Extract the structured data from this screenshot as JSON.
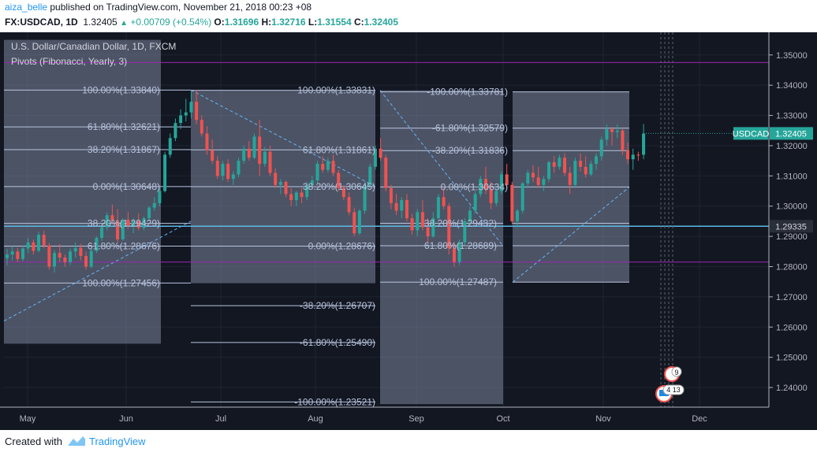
{
  "header": {
    "user": "aiza_belle",
    "published_text": " published on TradingView.com, November 21, 2018 00:23 +08",
    "symbol": "FX:USDCAD, 1D",
    "last": "1.32405",
    "change": "+0.00709 (+0.54%)",
    "o_label": "O:",
    "o": "1.31696",
    "h_label": "H:",
    "h": "1.32716",
    "l_label": "L:",
    "l": "1.31554",
    "c_label": "C:",
    "c": "1.32405"
  },
  "footer": {
    "prefix": "Created with",
    "brand": "TradingView"
  },
  "colors": {
    "background": "#131722",
    "up": "#26a69a",
    "down": "#ef5350",
    "fib_box": "#9aa7c4",
    "fib_line": "#b8c4de",
    "pivot": "#9c27b0",
    "axis_text": "#b2b5be",
    "price_tag": "#26a69a",
    "cursor_tag": "#2a2e39"
  },
  "chart_data": {
    "type": "candlestick",
    "title": "U.S. Dollar/Canadian Dollar, 1D, FXCM",
    "indicator": "Pivots (Fibonacci, Yearly, 3)",
    "x_labels": [
      "May",
      "Jun",
      "Jul",
      "Aug",
      "Sep",
      "Oct",
      "Nov",
      "Dec"
    ],
    "ylim": [
      1.2335,
      1.3575
    ],
    "y_ticks": [
      "1.35000",
      "1.34000",
      "1.33000",
      "1.32000",
      "1.31000",
      "1.30000",
      "1.29000",
      "1.28000",
      "1.27000",
      "1.26000",
      "1.25000",
      "1.24000"
    ],
    "price_tag": {
      "symbol": "USDCAD",
      "value": "1.32405"
    },
    "cursor_tag": "1.29335",
    "pivot_levels": [
      1.3475,
      1.2815
    ],
    "horizontal_line": 1.29335,
    "fib_groups": [
      {
        "labels": [
          {
            "text": "100.00%(1.33840)",
            "value": 1.3384
          },
          {
            "text": "61.80%(1.32621)",
            "value": 1.32621
          },
          {
            "text": "38.20%(1.31867)",
            "value": 1.31867
          },
          {
            "text": "0.00%(1.30648)",
            "value": 1.30648
          },
          {
            "text": "38.20%(1.29429)",
            "value": 1.29429
          },
          {
            "text": "61.80%(1.28676)",
            "value": 1.28676
          },
          {
            "text": "100.00%(1.27456)",
            "value": 1.27456
          }
        ]
      },
      {
        "labels": [
          {
            "text": "100.00%(1.33831)",
            "value": 1.33831
          },
          {
            "text": "61.80%(1.31861)",
            "value": 1.31861
          },
          {
            "text": "38.20%(1.30645)",
            "value": 1.30645
          },
          {
            "text": "0.00%(1.28676)",
            "value": 1.28676
          },
          {
            "text": "-38.20%(1.26707)",
            "value": 1.26707
          },
          {
            "text": "-61.80%(1.25490)",
            "value": 1.2549
          },
          {
            "text": "-100.00%(1.23521)",
            "value": 1.23521
          }
        ]
      },
      {
        "labels": [
          {
            "text": "-100.00%(1.33781)",
            "value": 1.33781
          },
          {
            "text": "-61.80%(1.32579)",
            "value": 1.32579
          },
          {
            "text": "-38.20%(1.31836)",
            "value": 1.31836
          },
          {
            "text": "0.00%(1.30634)",
            "value": 1.30634
          },
          {
            "text": "38.20%(1.29432)",
            "value": 1.29432
          },
          {
            "text": "61.80%(1.28689)",
            "value": 1.28689
          },
          {
            "text": "100.00%(1.27487)",
            "value": 1.27487
          }
        ]
      }
    ],
    "event_badges": [
      "9",
      "4 13"
    ],
    "candles_ohlc": [
      [
        1.2828,
        1.2858,
        1.2805,
        1.284
      ],
      [
        1.284,
        1.2868,
        1.282,
        1.285
      ],
      [
        1.285,
        1.2862,
        1.2815,
        1.2825
      ],
      [
        1.2825,
        1.287,
        1.2818,
        1.286
      ],
      [
        1.286,
        1.2895,
        1.2845,
        1.288
      ],
      [
        1.288,
        1.289,
        1.284,
        1.2852
      ],
      [
        1.2852,
        1.2915,
        1.2848,
        1.2905
      ],
      [
        1.2905,
        1.292,
        1.286,
        1.287
      ],
      [
        1.287,
        1.2878,
        1.279,
        1.28
      ],
      [
        1.28,
        1.2855,
        1.278,
        1.2845
      ],
      [
        1.2845,
        1.2875,
        1.2815,
        1.283
      ],
      [
        1.283,
        1.284,
        1.28,
        1.2815
      ],
      [
        1.2815,
        1.286,
        1.2805,
        1.285
      ],
      [
        1.285,
        1.288,
        1.283,
        1.2862
      ],
      [
        1.2862,
        1.2875,
        1.282,
        1.2835
      ],
      [
        1.2835,
        1.285,
        1.279,
        1.28
      ],
      [
        1.28,
        1.286,
        1.2795,
        1.2852
      ],
      [
        1.2852,
        1.29,
        1.2845,
        1.2895
      ],
      [
        1.2895,
        1.294,
        1.2885,
        1.293
      ],
      [
        1.293,
        1.298,
        1.292,
        1.297
      ],
      [
        1.297,
        1.3005,
        1.294,
        1.2952
      ],
      [
        1.2952,
        1.299,
        1.288,
        1.289
      ],
      [
        1.289,
        1.296,
        1.2885,
        1.2955
      ],
      [
        1.2955,
        1.298,
        1.2925,
        1.2935
      ],
      [
        1.2935,
        1.296,
        1.291,
        1.295
      ],
      [
        1.295,
        1.2975,
        1.292,
        1.2928
      ],
      [
        1.2928,
        1.2965,
        1.292,
        1.296
      ],
      [
        1.296,
        1.3,
        1.295,
        1.2995
      ],
      [
        1.2995,
        1.303,
        1.2985,
        1.301
      ],
      [
        1.301,
        1.306,
        1.3,
        1.305
      ],
      [
        1.305,
        1.318,
        1.3045,
        1.317
      ],
      [
        1.317,
        1.324,
        1.316,
        1.3225
      ],
      [
        1.3225,
        1.329,
        1.3215,
        1.3275
      ],
      [
        1.3275,
        1.332,
        1.3255,
        1.33
      ],
      [
        1.33,
        1.3355,
        1.328,
        1.331
      ],
      [
        1.331,
        1.338,
        1.329,
        1.3345
      ],
      [
        1.3345,
        1.3384,
        1.327,
        1.3285
      ],
      [
        1.3285,
        1.33,
        1.323,
        1.324
      ],
      [
        1.324,
        1.3265,
        1.317,
        1.3185
      ],
      [
        1.3185,
        1.322,
        1.314,
        1.315
      ],
      [
        1.315,
        1.3165,
        1.309,
        1.31
      ],
      [
        1.31,
        1.315,
        1.3085,
        1.314
      ],
      [
        1.314,
        1.3155,
        1.308,
        1.309
      ],
      [
        1.309,
        1.3115,
        1.307,
        1.3105
      ],
      [
        1.3105,
        1.316,
        1.3095,
        1.315
      ],
      [
        1.315,
        1.32,
        1.314,
        1.319
      ],
      [
        1.319,
        1.3215,
        1.315,
        1.316
      ],
      [
        1.316,
        1.324,
        1.3155,
        1.323
      ],
      [
        1.323,
        1.3285,
        1.31,
        1.314
      ],
      [
        1.314,
        1.3195,
        1.313,
        1.318
      ],
      [
        1.318,
        1.32,
        1.31,
        1.311
      ],
      [
        1.311,
        1.3125,
        1.306,
        1.307
      ],
      [
        1.307,
        1.309,
        1.304,
        1.308
      ],
      [
        1.308,
        1.3085,
        1.303,
        1.304
      ],
      [
        1.304,
        1.306,
        1.3,
        1.302
      ],
      [
        1.302,
        1.305,
        1.3,
        1.3045
      ],
      [
        1.3045,
        1.306,
        1.301,
        1.303
      ],
      [
        1.303,
        1.308,
        1.302,
        1.307
      ],
      [
        1.307,
        1.31,
        1.306,
        1.3085
      ],
      [
        1.3085,
        1.315,
        1.3075,
        1.314
      ],
      [
        1.314,
        1.3165,
        1.311,
        1.312
      ],
      [
        1.312,
        1.316,
        1.311,
        1.315
      ],
      [
        1.315,
        1.317,
        1.31,
        1.311
      ],
      [
        1.311,
        1.312,
        1.305,
        1.306
      ],
      [
        1.306,
        1.307,
        1.302,
        1.303
      ],
      [
        1.303,
        1.3045,
        1.297,
        1.298
      ],
      [
        1.298,
        1.2995,
        1.29,
        1.291
      ],
      [
        1.291,
        1.299,
        1.2905,
        1.2985
      ],
      [
        1.2985,
        1.308,
        1.2975,
        1.307
      ],
      [
        1.307,
        1.314,
        1.306,
        1.313
      ],
      [
        1.313,
        1.32,
        1.312,
        1.319
      ],
      [
        1.319,
        1.3225,
        1.315,
        1.316
      ],
      [
        1.316,
        1.317,
        1.305,
        1.306
      ],
      [
        1.306,
        1.307,
        1.299,
        1.301
      ],
      [
        1.301,
        1.304,
        1.297,
        1.2985
      ],
      [
        1.2985,
        1.303,
        1.296,
        1.302
      ],
      [
        1.302,
        1.304,
        1.295,
        1.296
      ],
      [
        1.296,
        1.2975,
        1.2905,
        1.292
      ],
      [
        1.292,
        1.299,
        1.29,
        1.298
      ],
      [
        1.298,
        1.302,
        1.292,
        1.293
      ],
      [
        1.293,
        1.296,
        1.288,
        1.29
      ],
      [
        1.29,
        1.298,
        1.2895,
        1.296
      ],
      [
        1.296,
        1.304,
        1.2955,
        1.303
      ],
      [
        1.303,
        1.306,
        1.299,
        1.3
      ],
      [
        1.3,
        1.301,
        1.284,
        1.286
      ],
      [
        1.286,
        1.288,
        1.28,
        1.2815
      ],
      [
        1.2815,
        1.289,
        1.2805,
        1.288
      ],
      [
        1.288,
        1.296,
        1.287,
        1.295
      ],
      [
        1.295,
        1.3,
        1.2935,
        1.2985
      ],
      [
        1.2985,
        1.305,
        1.2975,
        1.304
      ],
      [
        1.304,
        1.31,
        1.303,
        1.309
      ],
      [
        1.309,
        1.313,
        1.304,
        1.3055
      ],
      [
        1.3055,
        1.308,
        1.299,
        1.301
      ],
      [
        1.301,
        1.306,
        1.3,
        1.305
      ],
      [
        1.305,
        1.3115,
        1.304,
        1.3105
      ],
      [
        1.3105,
        1.314,
        1.306,
        1.307
      ],
      [
        1.307,
        1.308,
        1.294,
        1.295
      ],
      [
        1.295,
        1.299,
        1.293,
        1.2985
      ],
      [
        1.2985,
        1.308,
        1.2975,
        1.3075
      ],
      [
        1.3075,
        1.312,
        1.306,
        1.311
      ],
      [
        1.311,
        1.3135,
        1.308,
        1.3095
      ],
      [
        1.3095,
        1.313,
        1.306,
        1.307
      ],
      [
        1.307,
        1.31,
        1.305,
        1.309
      ],
      [
        1.309,
        1.315,
        1.308,
        1.3145
      ],
      [
        1.3145,
        1.3165,
        1.311,
        1.313
      ],
      [
        1.313,
        1.317,
        1.312,
        1.316
      ],
      [
        1.316,
        1.3175,
        1.31,
        1.311
      ],
      [
        1.311,
        1.313,
        1.304,
        1.307
      ],
      [
        1.307,
        1.316,
        1.306,
        1.315
      ],
      [
        1.315,
        1.3175,
        1.3115,
        1.313
      ],
      [
        1.313,
        1.3165,
        1.3095,
        1.3105
      ],
      [
        1.3105,
        1.315,
        1.31,
        1.314
      ],
      [
        1.314,
        1.3175,
        1.312,
        1.3165
      ],
      [
        1.3165,
        1.323,
        1.315,
        1.322
      ],
      [
        1.322,
        1.327,
        1.32,
        1.3255
      ],
      [
        1.3255,
        1.3262,
        1.32,
        1.3245
      ],
      [
        1.3245,
        1.327,
        1.3225,
        1.325
      ],
      [
        1.325,
        1.3255,
        1.317,
        1.3185
      ],
      [
        1.3185,
        1.321,
        1.314,
        1.3155
      ],
      [
        1.3155,
        1.319,
        1.312,
        1.317
      ],
      [
        1.317,
        1.318,
        1.315,
        1.3169
      ],
      [
        1.317,
        1.3272,
        1.3155,
        1.324
      ]
    ]
  }
}
